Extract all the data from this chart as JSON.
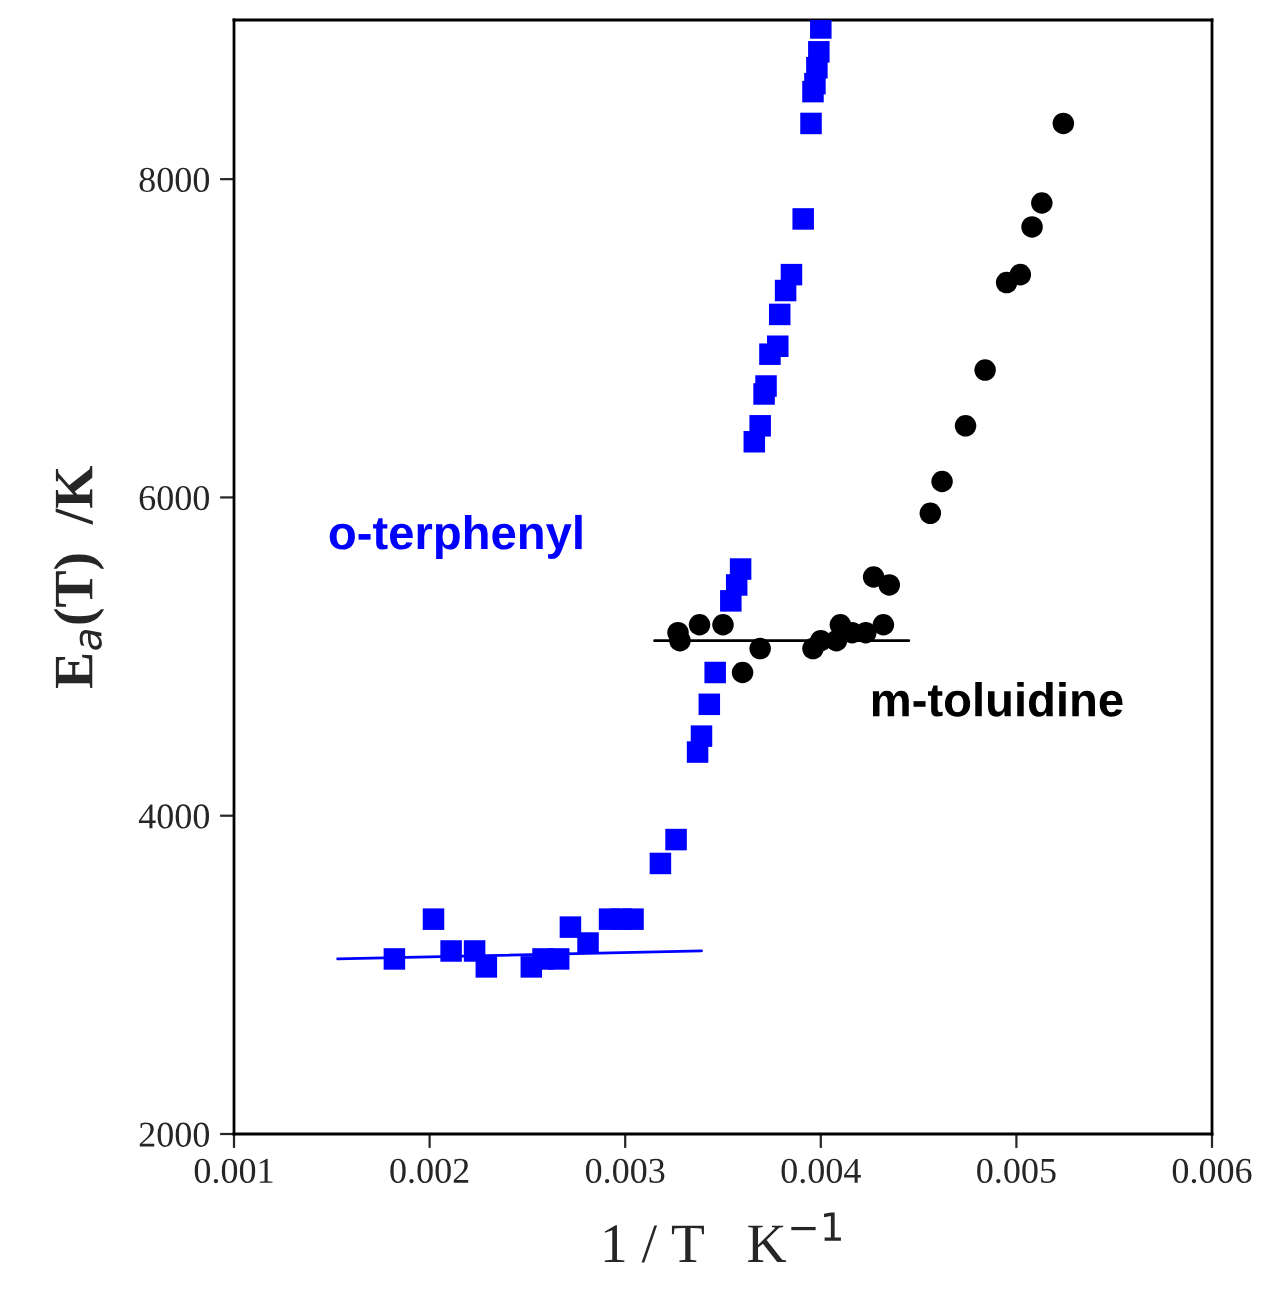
{
  "chart_data": {
    "type": "scatter",
    "xlabel": "1 / T   K$^{−1}$",
    "ylabel": "E$_{a}$(T)  /K",
    "xlim": [
      0.001,
      0.006
    ],
    "ylim": [
      2000,
      9000
    ],
    "xticks": [
      {
        "value": 0.001,
        "label": "0.001"
      },
      {
        "value": 0.002,
        "label": "0.002"
      },
      {
        "value": 0.003,
        "label": "0.003"
      },
      {
        "value": 0.004,
        "label": "0.004"
      },
      {
        "value": 0.005,
        "label": "0.005"
      },
      {
        "value": 0.006,
        "label": "0.006"
      }
    ],
    "yticks": [
      2000,
      4000,
      6000,
      8000
    ],
    "grid": false,
    "series": [
      {
        "name": "o-terphenyl",
        "marker": "square",
        "color": "#0000ff",
        "x": [
          0.00182,
          0.00202,
          0.00211,
          0.00223,
          0.00229,
          0.00252,
          0.00258,
          0.00266,
          0.00272,
          0.00281,
          0.00292,
          0.00298,
          0.00304,
          0.00318,
          0.00326,
          0.00337,
          0.00339,
          0.00343,
          0.00346,
          0.00354,
          0.00357,
          0.00359,
          0.00366,
          0.00369,
          0.00371,
          0.00372,
          0.00374,
          0.00378,
          0.00379,
          0.00382,
          0.00385,
          0.00391,
          0.00395,
          0.00396,
          0.00397,
          0.00398,
          0.00399,
          0.004
        ],
        "values": [
          3100,
          3350,
          3150,
          3150,
          3050,
          3050,
          3100,
          3100,
          3300,
          3200,
          3350,
          3350,
          3350,
          3700,
          3850,
          4400,
          4500,
          4700,
          4900,
          5350,
          5450,
          5550,
          6350,
          6450,
          6650,
          6700,
          6900,
          6950,
          7150,
          7300,
          7400,
          7750,
          8350,
          8550,
          8600,
          8700,
          8800,
          8950
        ]
      },
      {
        "name": "m-toluidine",
        "marker": "circle",
        "color": "#000000",
        "x": [
          0.00327,
          0.00328,
          0.00338,
          0.0035,
          0.0036,
          0.00369,
          0.00396,
          0.004,
          0.00408,
          0.0041,
          0.00416,
          0.00423,
          0.00432,
          0.00427,
          0.00435,
          0.00456,
          0.00462,
          0.00474,
          0.00484,
          0.00495,
          0.00502,
          0.00508,
          0.00513,
          0.00524
        ],
        "values": [
          5150,
          5100,
          5200,
          5200,
          4900,
          5050,
          5050,
          5100,
          5100,
          5200,
          5150,
          5150,
          5200,
          5500,
          5450,
          5900,
          6100,
          6450,
          6800,
          7350,
          7400,
          7700,
          7850,
          8350
        ]
      },
      {
        "type": "line",
        "color": "#0000ff",
        "x": [
          0.00153,
          0.00339
        ],
        "values": [
          3100,
          3150
        ]
      },
      {
        "type": "line",
        "color": "#000000",
        "x": [
          0.00315,
          0.00445
        ],
        "values": [
          5100,
          5100
        ]
      }
    ]
  }
}
